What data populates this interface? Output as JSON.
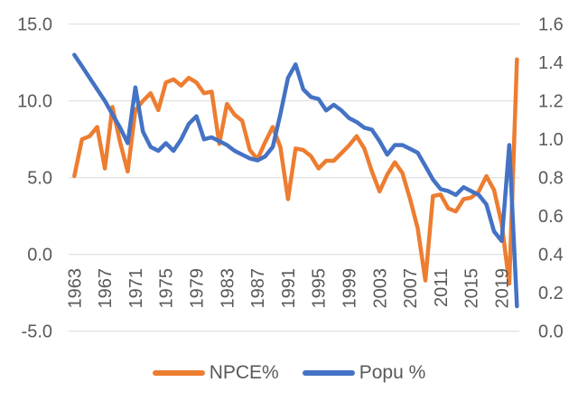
{
  "background_color": "#ffffff",
  "colors": {
    "gridline": "#d9d9d9",
    "tick_text": "#595959",
    "npce_orange": "#ED7D31",
    "popu_blue": "#4472C4"
  },
  "legend": {
    "position": "bottom"
  },
  "chart_data": {
    "type": "line",
    "title": "",
    "xlabel": "",
    "ylabel_left": "",
    "ylabel_right": "",
    "grid": true,
    "legend_position": "bottom",
    "x": [
      1963,
      1964,
      1965,
      1966,
      1967,
      1968,
      1969,
      1970,
      1971,
      1972,
      1973,
      1974,
      1975,
      1976,
      1977,
      1978,
      1979,
      1980,
      1981,
      1982,
      1983,
      1984,
      1985,
      1986,
      1987,
      1988,
      1989,
      1990,
      1991,
      1992,
      1993,
      1994,
      1995,
      1996,
      1997,
      1998,
      1999,
      2000,
      2001,
      2002,
      2003,
      2004,
      2005,
      2006,
      2007,
      2008,
      2009,
      2010,
      2011,
      2012,
      2013,
      2014,
      2015,
      2016,
      2017,
      2018,
      2019,
      2020,
      2021
    ],
    "x_tick_labels": [
      "1963",
      "1967",
      "1971",
      "1975",
      "1979",
      "1983",
      "1987",
      "1991",
      "1995",
      "1999",
      "2003",
      "2007",
      "2011",
      "2015",
      "2019"
    ],
    "left_axis": {
      "min": -5.0,
      "max": 15.0,
      "tick_labels": [
        "15.0",
        "10.0",
        "5.0",
        "0.0",
        "-5.0"
      ],
      "tick_values": [
        15.0,
        10.0,
        5.0,
        0.0,
        -5.0
      ]
    },
    "right_axis": {
      "min": 0.0,
      "max": 1.6,
      "tick_labels": [
        "1.6",
        "1.4",
        "1.2",
        "1.0",
        "0.8",
        "0.6",
        "0.4",
        "0.2",
        "0.0"
      ],
      "tick_values": [
        1.6,
        1.4,
        1.2,
        1.0,
        0.8,
        0.6,
        0.4,
        0.2,
        0.0
      ]
    },
    "series": [
      {
        "name": "NPCE%",
        "axis": "left",
        "color": "#ED7D31",
        "values": [
          5.1,
          7.5,
          7.7,
          8.3,
          5.6,
          9.6,
          7.3,
          5.4,
          9.4,
          10.0,
          10.5,
          9.4,
          11.2,
          11.4,
          11.0,
          11.5,
          11.2,
          10.5,
          10.6,
          7.2,
          9.8,
          9.1,
          8.7,
          6.8,
          6.2,
          7.3,
          8.3,
          7.0,
          3.6,
          6.9,
          6.8,
          6.4,
          5.6,
          6.1,
          6.1,
          6.6,
          7.1,
          7.7,
          6.9,
          5.4,
          4.1,
          5.2,
          6.0,
          5.3,
          3.6,
          1.7,
          -1.7,
          3.8,
          3.9,
          3.0,
          2.8,
          3.6,
          3.7,
          4.1,
          5.1,
          4.2,
          2.0,
          -1.9,
          12.7
        ]
      },
      {
        "name": "Popu %",
        "axis": "right",
        "color": "#4472C4",
        "values": [
          1.44,
          1.38,
          1.32,
          1.26,
          1.2,
          1.13,
          1.06,
          0.98,
          1.27,
          1.04,
          0.96,
          0.94,
          0.98,
          0.94,
          1.0,
          1.08,
          1.12,
          1.0,
          1.01,
          0.99,
          0.97,
          0.94,
          0.92,
          0.9,
          0.89,
          0.91,
          0.96,
          1.13,
          1.32,
          1.39,
          1.26,
          1.22,
          1.21,
          1.15,
          1.18,
          1.15,
          1.11,
          1.09,
          1.06,
          1.05,
          0.99,
          0.92,
          0.97,
          0.97,
          0.95,
          0.93,
          0.86,
          0.79,
          0.74,
          0.73,
          0.71,
          0.75,
          0.73,
          0.71,
          0.66,
          0.52,
          0.47,
          0.97,
          0.13
        ]
      }
    ]
  }
}
